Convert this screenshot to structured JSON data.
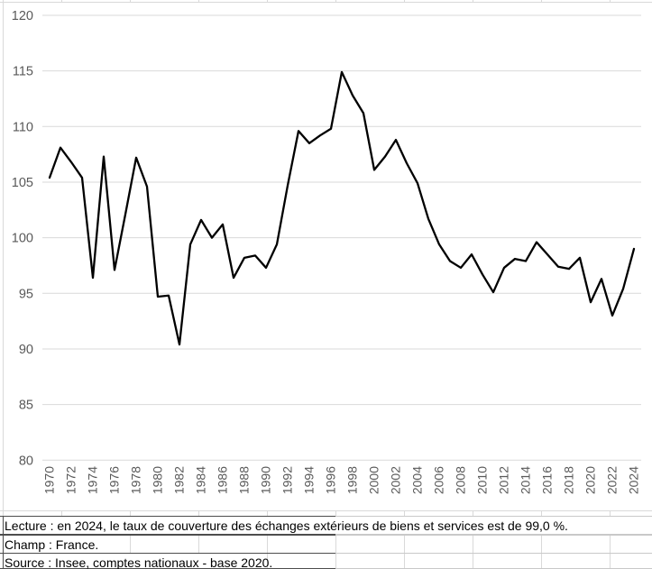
{
  "notes": {
    "lecture": "Lecture : en 2024, le taux de couverture des échanges extérieurs de biens et services est de 99,0 %.",
    "champ": "Champ : France.",
    "source": "Source : Insee, comptes nationaux - base 2020."
  },
  "chart_data": {
    "type": "line",
    "title": "",
    "xlabel": "",
    "ylabel": "",
    "legend": "none",
    "grid": "horizontal",
    "ylim": [
      80,
      120
    ],
    "ytick_step": 5,
    "xtick_step": 2,
    "x": [
      1970,
      1971,
      1972,
      1973,
      1974,
      1975,
      1976,
      1977,
      1978,
      1979,
      1980,
      1981,
      1982,
      1983,
      1984,
      1985,
      1986,
      1987,
      1988,
      1989,
      1990,
      1991,
      1992,
      1993,
      1994,
      1995,
      1996,
      1997,
      1998,
      1999,
      2000,
      2001,
      2002,
      2003,
      2004,
      2005,
      2006,
      2007,
      2008,
      2009,
      2010,
      2011,
      2012,
      2013,
      2014,
      2015,
      2016,
      2017,
      2018,
      2019,
      2020,
      2021,
      2022,
      2023,
      2024
    ],
    "series": [
      {
        "name": "Taux de couverture des échanges extérieurs de biens et services (%)",
        "color": "#000000",
        "values": [
          105.4,
          108.1,
          106.8,
          105.4,
          96.4,
          107.3,
          97.1,
          102.1,
          107.2,
          104.6,
          94.7,
          94.8,
          90.4,
          99.4,
          101.6,
          100.0,
          101.2,
          96.4,
          98.2,
          98.4,
          97.3,
          99.4,
          104.7,
          109.6,
          108.5,
          109.2,
          109.8,
          114.9,
          112.8,
          111.2,
          106.1,
          107.3,
          108.8,
          106.7,
          104.9,
          101.7,
          99.4,
          97.9,
          97.3,
          98.5,
          96.7,
          95.1,
          97.3,
          98.1,
          97.9,
          99.6,
          98.5,
          97.4,
          97.2,
          98.2,
          94.2,
          96.3,
          93.0,
          95.4,
          99.0
        ]
      }
    ],
    "colors": {
      "axis_labels": "#595959",
      "gridlines": "#d9d9d9",
      "line": "#000000"
    }
  }
}
